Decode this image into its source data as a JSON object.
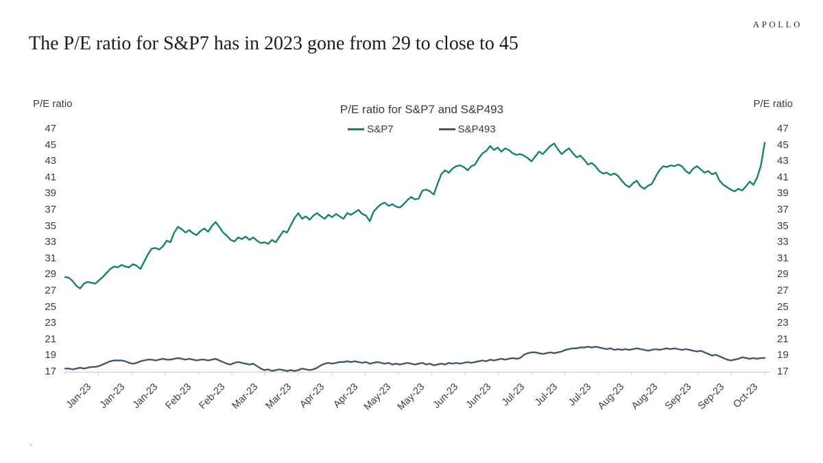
{
  "header": {
    "title": "The P/E ratio for S&P7 has in 2023 gone from 29 to close to 45",
    "brand": "APOLLO"
  },
  "chart_data": {
    "type": "line",
    "title": "P/E ratio for S&P7 and S&P493",
    "y_axis_title_left": "P/E ratio",
    "y_axis_title_right": "P/E ratio",
    "ylim": [
      17,
      47
    ],
    "yticks": [
      47,
      45,
      43,
      41,
      39,
      37,
      35,
      33,
      31,
      29,
      27,
      25,
      23,
      21,
      19,
      17
    ],
    "grid": false,
    "legend_position": "top-center",
    "x_labels": [
      "Jan-23",
      "Jan-23",
      "Jan-23",
      "Feb-23",
      "Feb-23",
      "Mar-23",
      "Mar-23",
      "Apr-23",
      "Apr-23",
      "May-23",
      "May-23",
      "Jun-23",
      "Jun-23",
      "Jul-23",
      "Jul-23",
      "Jul-23",
      "Aug-23",
      "Aug-23",
      "Sep-23",
      "Sep-23",
      "Oct-23"
    ],
    "axis_color": "#c9c9c9",
    "series": [
      {
        "name": "S&P7",
        "color": "#12836a",
        "values": [
          28.7,
          28.6,
          28.2,
          27.6,
          27.3,
          27.9,
          28.1,
          28.0,
          27.9,
          28.3,
          28.7,
          29.2,
          29.7,
          30.0,
          29.9,
          30.2,
          30.0,
          29.9,
          30.3,
          30.1,
          29.7,
          30.6,
          31.5,
          32.2,
          32.3,
          32.1,
          32.5,
          33.2,
          33.0,
          34.2,
          34.9,
          34.6,
          34.2,
          34.5,
          34.1,
          33.9,
          34.4,
          34.7,
          34.3,
          35.0,
          35.5,
          34.9,
          34.2,
          33.8,
          33.3,
          33.1,
          33.6,
          33.4,
          33.7,
          33.3,
          33.6,
          33.2,
          32.9,
          33.0,
          32.8,
          33.3,
          33.0,
          33.7,
          34.4,
          34.2,
          35.1,
          36.0,
          36.6,
          35.9,
          36.2,
          35.8,
          36.3,
          36.6,
          36.2,
          35.9,
          36.4,
          36.1,
          36.5,
          36.2,
          35.9,
          36.6,
          36.4,
          36.7,
          37.0,
          36.5,
          36.3,
          35.6,
          36.8,
          37.3,
          37.7,
          37.9,
          37.5,
          37.7,
          37.4,
          37.3,
          37.7,
          38.2,
          38.6,
          38.3,
          38.4,
          39.4,
          39.5,
          39.3,
          38.9,
          40.2,
          41.4,
          41.9,
          41.6,
          42.1,
          42.4,
          42.5,
          42.3,
          41.9,
          42.4,
          42.6,
          43.4,
          44.0,
          44.3,
          44.9,
          44.4,
          44.7,
          44.2,
          44.6,
          44.4,
          44.0,
          43.8,
          43.9,
          43.7,
          43.4,
          43.0,
          43.6,
          44.2,
          43.9,
          44.4,
          44.9,
          45.2,
          44.5,
          43.9,
          44.3,
          44.6,
          44.0,
          43.5,
          43.7,
          43.2,
          42.6,
          42.8,
          42.4,
          41.8,
          41.5,
          41.6,
          41.3,
          41.5,
          41.2,
          40.6,
          40.1,
          39.8,
          40.3,
          40.6,
          39.9,
          39.6,
          40.0,
          40.2,
          41.1,
          41.9,
          42.4,
          42.3,
          42.5,
          42.4,
          42.6,
          42.4,
          41.8,
          41.5,
          42.1,
          42.4,
          42.0,
          41.6,
          41.8,
          41.4,
          41.6,
          40.6,
          40.1,
          39.8,
          39.5,
          39.3,
          39.6,
          39.4,
          39.9,
          40.5,
          40.1,
          41.0,
          42.5,
          45.3
        ]
      },
      {
        "name": "S&P493",
        "color": "#3e5871",
        "values": [
          17.4,
          17.4,
          17.3,
          17.4,
          17.5,
          17.4,
          17.5,
          17.6,
          17.6,
          17.7,
          17.9,
          18.1,
          18.3,
          18.4,
          18.4,
          18.4,
          18.3,
          18.1,
          18.0,
          18.1,
          18.3,
          18.4,
          18.5,
          18.5,
          18.4,
          18.5,
          18.6,
          18.5,
          18.5,
          18.6,
          18.7,
          18.6,
          18.5,
          18.6,
          18.5,
          18.4,
          18.5,
          18.5,
          18.4,
          18.5,
          18.6,
          18.4,
          18.2,
          18.0,
          17.9,
          18.1,
          18.2,
          18.1,
          18.0,
          17.9,
          18.0,
          17.7,
          17.4,
          17.2,
          17.3,
          17.1,
          17.2,
          17.3,
          17.2,
          17.1,
          17.2,
          17.1,
          17.2,
          17.4,
          17.3,
          17.2,
          17.3,
          17.5,
          17.8,
          18.0,
          18.1,
          18.0,
          18.1,
          18.2,
          18.2,
          18.3,
          18.2,
          18.3,
          18.2,
          18.1,
          18.2,
          18.0,
          18.1,
          18.2,
          18.1,
          18.0,
          18.1,
          17.9,
          18.0,
          17.9,
          18.0,
          18.1,
          18.0,
          17.9,
          18.0,
          18.1,
          17.9,
          18.0,
          17.8,
          17.9,
          18.0,
          17.9,
          18.1,
          18.0,
          18.1,
          18.0,
          18.1,
          18.2,
          18.1,
          18.2,
          18.3,
          18.4,
          18.3,
          18.5,
          18.4,
          18.5,
          18.6,
          18.5,
          18.6,
          18.7,
          18.6,
          18.7,
          19.1,
          19.3,
          19.4,
          19.4,
          19.3,
          19.2,
          19.3,
          19.4,
          19.3,
          19.4,
          19.5,
          19.7,
          19.8,
          19.9,
          19.9,
          20.0,
          20.0,
          20.1,
          20.0,
          20.1,
          20.0,
          19.9,
          19.8,
          19.9,
          19.7,
          19.8,
          19.7,
          19.8,
          19.7,
          19.8,
          19.9,
          19.8,
          19.7,
          19.6,
          19.7,
          19.8,
          19.7,
          19.8,
          19.9,
          19.8,
          19.9,
          19.8,
          19.7,
          19.8,
          19.7,
          19.6,
          19.5,
          19.6,
          19.4,
          19.2,
          19.0,
          19.1,
          18.9,
          18.7,
          18.5,
          18.4,
          18.5,
          18.6,
          18.8,
          18.7,
          18.6,
          18.7,
          18.6,
          18.7,
          18.7
        ]
      }
    ]
  }
}
